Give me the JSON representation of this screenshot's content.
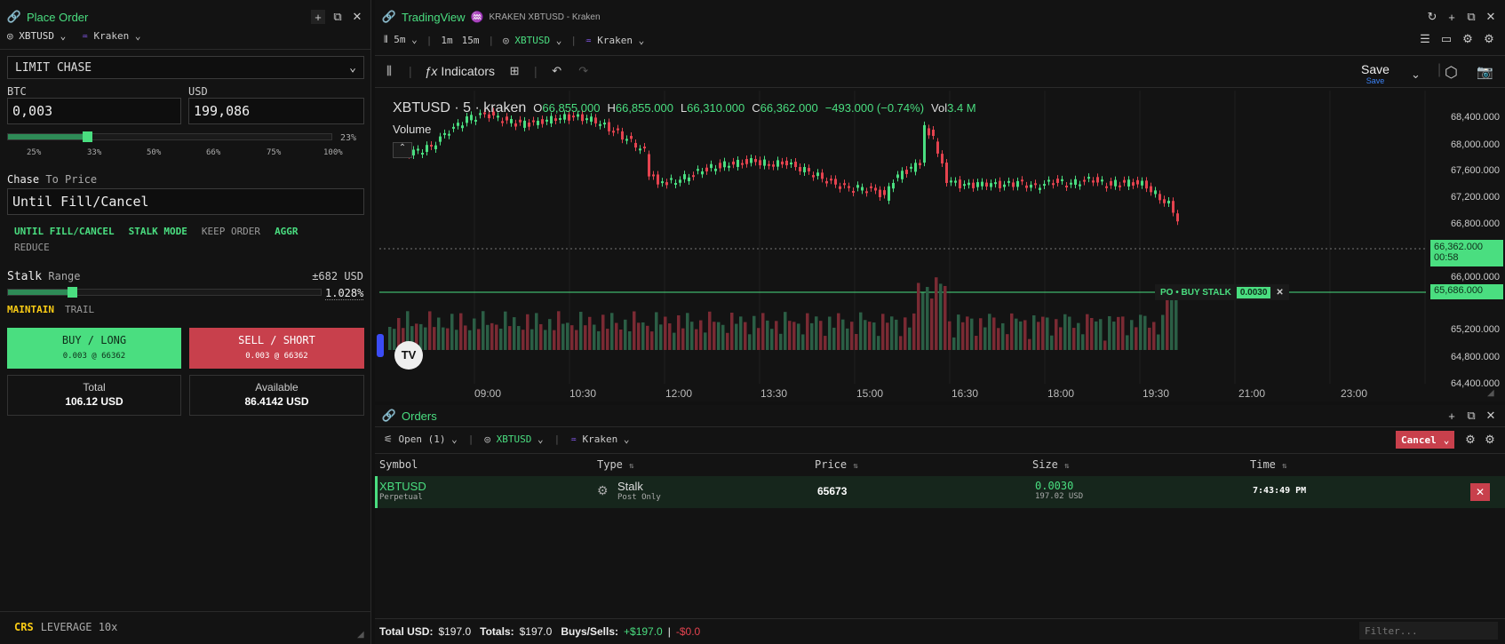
{
  "place_order": {
    "title": "Place Order",
    "symbol": "XBTUSD",
    "exchange": "Kraken",
    "order_type": "LIMIT CHASE",
    "btc_label": "BTC",
    "usd_label": "USD",
    "btc_value": "0,003",
    "usd_value": "199,086",
    "slider_pct_label": "23%",
    "slider_pct": 0.23,
    "slider_ticks": [
      "25%",
      "33%",
      "50%",
      "66%",
      "75%",
      "100%"
    ],
    "chase_label": "Chase",
    "chase_sub": "To Price",
    "chase_value": "Until Fill/Cancel",
    "options": [
      "UNTIL FILL/CANCEL",
      "STALK MODE",
      "KEEP ORDER",
      "AGGR",
      "REDUCE"
    ],
    "stalk_label": "Stalk",
    "stalk_sub": "Range",
    "stalk_usd": "±682 USD",
    "stalk_pct": "1.028%",
    "stalk_fill": 0.19,
    "maintain": "MAINTAIN",
    "trail": "TRAIL",
    "buy_label": "BUY / LONG",
    "buy_sub": "0.003 @ 66362",
    "sell_label": "SELL / SHORT",
    "sell_sub": "0.003 @ 66362",
    "total_label": "Total",
    "total_value": "106.12 USD",
    "available_label": "Available",
    "available_value": "86.4142 USD",
    "crs": "CRS",
    "leverage": "LEVERAGE 10x"
  },
  "chart": {
    "brand": "TradingView",
    "subtitle": "KRAKEN XBTUSD - Kraken",
    "interval": "5m",
    "intervals": [
      "1m",
      "15m"
    ],
    "symbol": "XBTUSD",
    "exchange": "Kraken",
    "indicators": "Indicators",
    "save": "Save",
    "save_sub": "Save",
    "legend_title": "XBTUSD · 5 · kraken",
    "o": "66,855.000",
    "h": "66,855.000",
    "l": "66,310.000",
    "c": "66,362.000",
    "chg": "−493.000 (−0.74%)",
    "vol_label": "Vol",
    "vol": "3.4 M",
    "volume_label": "Volume",
    "price_labels": [
      "68,400.000",
      "68,000.000",
      "67,600.000",
      "67,200.000",
      "66,800.000",
      "66,000.000",
      "65,200.000",
      "64,800.000",
      "64,400.000"
    ],
    "last_price": "66,362.000",
    "countdown": "00:58",
    "order_line_price": "65,686.000",
    "order_line_label": "PO • BUY STALK",
    "order_line_qty": "0.0030",
    "time_labels": [
      "09:00",
      "10:30",
      "12:00",
      "13:30",
      "15:00",
      "16:30",
      "18:00",
      "19:30",
      "21:00",
      "23:00"
    ],
    "colors": {
      "up": "#4ade80",
      "down": "#e5434f"
    }
  },
  "orders": {
    "title": "Orders",
    "filter_open": "Open (1)",
    "symbol": "XBTUSD",
    "exchange": "Kraken",
    "cancel": "Cancel",
    "columns": [
      "Symbol",
      "Type",
      "Price",
      "Size",
      "Time"
    ],
    "rows": [
      {
        "symbol": "XBTUSD",
        "symbol_sub": "Perpetual",
        "type": "Stalk",
        "type_sub": "Post Only",
        "price": "65673",
        "size": "0.0030",
        "size_sub": "197.02 USD",
        "time": "7:43:49 PM"
      }
    ],
    "footer": {
      "total_usd_label": "Total USD:",
      "total_usd": "$197.0",
      "totals_label": "Totals:",
      "totals": "$197.0",
      "buys_sells_label": "Buys/Sells:",
      "buys": "+$197.0",
      "sells": "-$0.0",
      "filter_placeholder": "Filter..."
    }
  }
}
